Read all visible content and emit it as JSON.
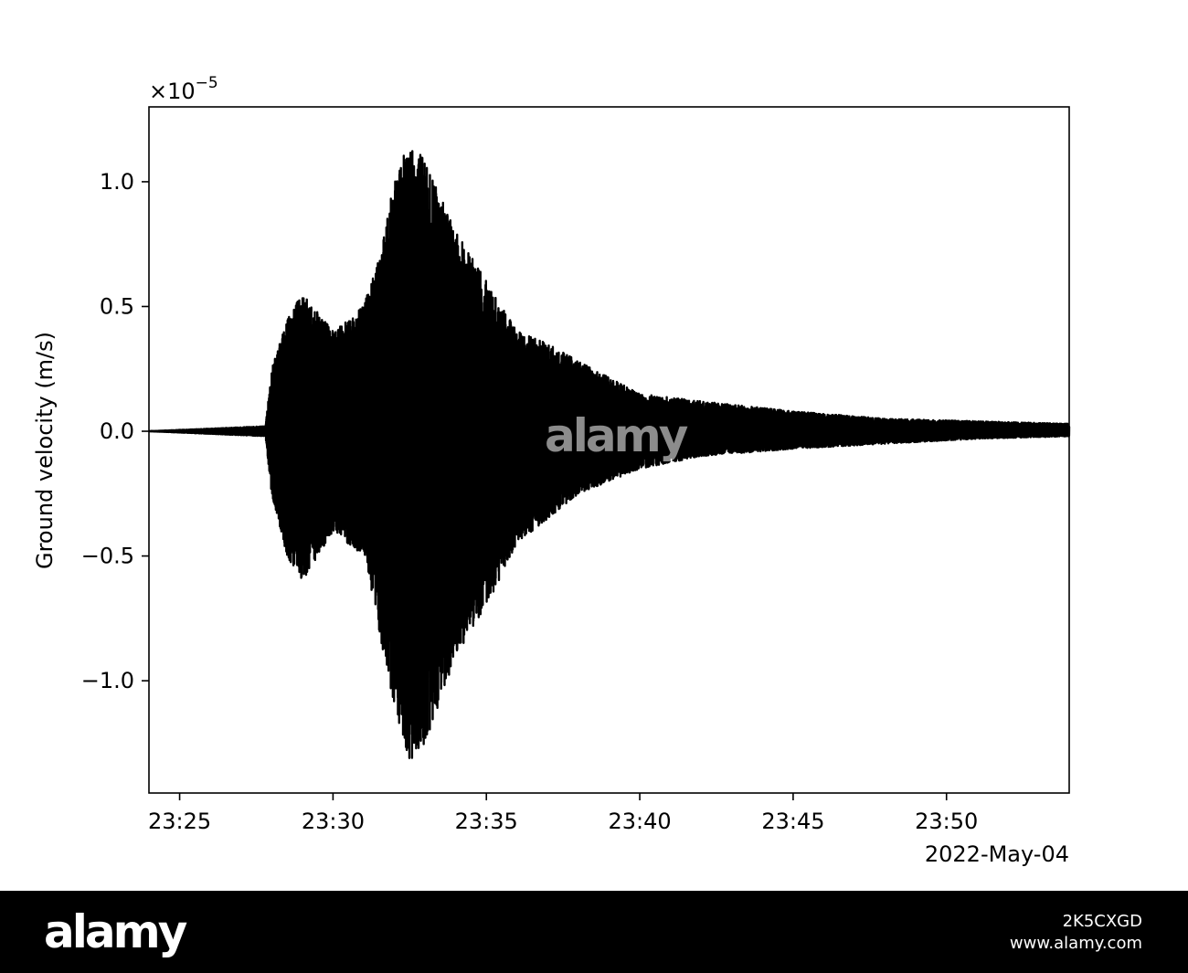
{
  "chart_data": {
    "type": "line",
    "xlabel": "",
    "ylabel": "Ground velocity (m/s)",
    "date_label": "2022-May-04",
    "y_scale_label": "×10",
    "y_scale_exponent": "−5",
    "xlim": [
      "23:24",
      "23:54"
    ],
    "ylim": [
      -1.45,
      1.3
    ],
    "x_ticks": [
      "23:25",
      "23:30",
      "23:35",
      "23:40",
      "23:45",
      "23:50"
    ],
    "y_ticks": [
      {
        "value": 1.0,
        "label": "1.0"
      },
      {
        "value": 0.5,
        "label": "0.5"
      },
      {
        "value": 0.0,
        "label": "0.0"
      },
      {
        "value": -0.5,
        "label": "−0.5"
      },
      {
        "value": -1.0,
        "label": "−1.0"
      }
    ],
    "grid": false,
    "series": [
      {
        "color": "#000000",
        "envelope": {
          "time": [
            "23:24",
            "23:27.8",
            "23:28",
            "23:28.5",
            "23:29",
            "23:30",
            "23:31",
            "23:31.5",
            "23:32",
            "23:32.5",
            "23:33",
            "23:34",
            "23:35",
            "23:36",
            "23:37",
            "23:38",
            "23:40",
            "23:42",
            "23:45",
            "23:48",
            "23:51",
            "23:54"
          ],
          "max": [
            0.0,
            0.02,
            0.25,
            0.45,
            0.55,
            0.4,
            0.5,
            0.7,
            1.0,
            1.17,
            1.08,
            0.8,
            0.6,
            0.4,
            0.35,
            0.28,
            0.15,
            0.12,
            0.08,
            0.05,
            0.04,
            0.03
          ],
          "min": [
            0.0,
            -0.02,
            -0.25,
            -0.5,
            -0.6,
            -0.4,
            -0.5,
            -0.8,
            -1.1,
            -1.32,
            -1.25,
            -0.9,
            -0.7,
            -0.45,
            -0.35,
            -0.25,
            -0.15,
            -0.1,
            -0.07,
            -0.05,
            -0.03,
            -0.02
          ]
        }
      }
    ]
  },
  "watermark": {
    "center_text": "alamy",
    "footer_logo": "alamy",
    "image_id": "2K5CXGD",
    "site": "www.alamy.com"
  }
}
